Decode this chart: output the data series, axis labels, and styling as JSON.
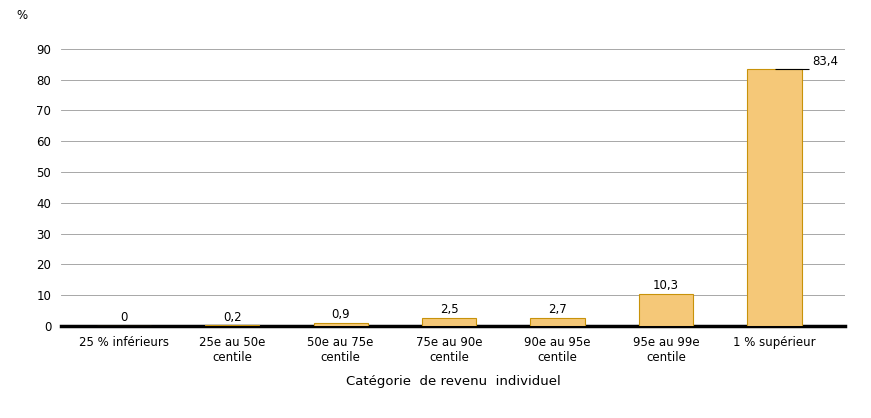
{
  "categories": [
    "25 % inférieurs",
    "25e au 50e\ncentile",
    "50e au 75e\ncentile",
    "75e au 90e\ncentile",
    "90e au 95e\ncentile",
    "95e au 99e\ncentile",
    "1 % supérieur"
  ],
  "values": [
    0,
    0.2,
    0.9,
    2.5,
    2.7,
    10.3,
    83.4
  ],
  "labels": [
    "0",
    "0,2",
    "0,9",
    "2,5",
    "2,7",
    "10,3",
    "83,4"
  ],
  "bar_color": "#F5C878",
  "bar_edge_color": "#C8920A",
  "ylabel": "%",
  "xlabel": "Catégorie  de revenu  individuel",
  "ylim": [
    0,
    95
  ],
  "yticks": [
    0,
    10,
    20,
    30,
    40,
    50,
    60,
    70,
    80,
    90
  ],
  "grid_color": "#999999",
  "background_color": "#FFFFFF",
  "label_fontsize": 8.5,
  "tick_fontsize": 8.5,
  "xlabel_fontsize": 9.5,
  "bar_width": 0.5
}
